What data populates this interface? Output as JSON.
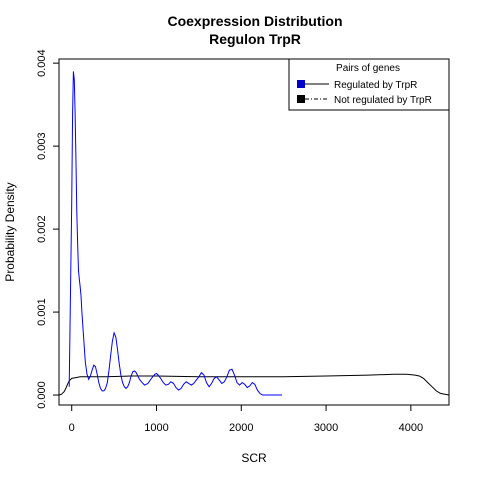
{
  "chart_data": {
    "type": "line",
    "title": "Coexpression Distribution",
    "subtitle": "Regulon TrpR",
    "xlabel": "SCR",
    "ylabel": "Probability Density",
    "xlim": [
      -150,
      4450
    ],
    "ylim": [
      -0.00012,
      0.00405
    ],
    "x_ticks": [
      0,
      1000,
      2000,
      3000,
      4000
    ],
    "x_tick_labels": [
      "0",
      "1000",
      "2000",
      "3000",
      "4000"
    ],
    "y_ticks": [
      0.0,
      0.001,
      0.002,
      0.003,
      0.004
    ],
    "y_tick_labels": [
      "0.000",
      "0.001",
      "0.002",
      "0.003",
      "0.004"
    ],
    "legend": {
      "title": "Pairs of genes",
      "position": "top-right",
      "entries": [
        "Regulated by  TrpR",
        "Not regulated by  TrpR"
      ]
    },
    "series": [
      {
        "name": "Regulated by  TrpR",
        "color": "#0000ff",
        "line_style": "solid",
        "marker_color": "#0000cc",
        "x": [
          -30,
          0,
          10,
          20,
          30,
          40,
          50,
          60,
          70,
          80,
          90,
          100,
          110,
          120,
          140,
          160,
          180,
          200,
          220,
          240,
          260,
          280,
          300,
          320,
          340,
          360,
          380,
          400,
          420,
          440,
          460,
          480,
          500,
          520,
          540,
          560,
          580,
          600,
          620,
          640,
          660,
          680,
          700,
          720,
          740,
          760,
          780,
          800,
          830,
          860,
          900,
          940,
          980,
          1000,
          1020,
          1050,
          1080,
          1110,
          1140,
          1170,
          1200,
          1230,
          1260,
          1290,
          1320,
          1350,
          1380,
          1410,
          1440,
          1470,
          1500,
          1530,
          1560,
          1590,
          1620,
          1650,
          1680,
          1710,
          1740,
          1770,
          1800,
          1830,
          1860,
          1890,
          1920,
          1950,
          1980,
          2010,
          2040,
          2070,
          2100,
          2130,
          2160,
          2190,
          2220,
          2250,
          2280,
          2310,
          2340,
          2370,
          2400,
          2430,
          2460,
          2480
        ],
        "y": [
          0.0001,
          0.0023,
          0.0034,
          0.0039,
          0.0038,
          0.0034,
          0.0028,
          0.0022,
          0.0018,
          0.0015,
          0.0014,
          0.0013,
          0.0012,
          0.001,
          0.0007,
          0.0004,
          0.00025,
          0.00019,
          0.00023,
          0.0003,
          0.00036,
          0.00034,
          0.00025,
          0.00015,
          8e-05,
          5e-05,
          5e-05,
          8e-05,
          0.00015,
          0.0003,
          0.00048,
          0.00065,
          0.00075,
          0.0007,
          0.00055,
          0.00038,
          0.00024,
          0.00015,
          0.0001,
          8e-05,
          0.0001,
          0.00015,
          0.00023,
          0.00028,
          0.00029,
          0.00027,
          0.00023,
          0.00019,
          0.00015,
          0.00012,
          0.00014,
          0.0002,
          0.00025,
          0.00026,
          0.00024,
          0.0002,
          0.00015,
          0.00012,
          0.00013,
          0.00016,
          0.00014,
          9e-05,
          6e-05,
          8e-05,
          0.00013,
          0.00016,
          0.00014,
          0.00012,
          0.00014,
          0.00018,
          0.00022,
          0.00027,
          0.00024,
          0.00015,
          0.0001,
          0.00014,
          0.0002,
          0.00022,
          0.00018,
          0.00014,
          0.00016,
          0.00022,
          0.0003,
          0.00031,
          0.00024,
          0.00015,
          0.00012,
          0.00015,
          0.00013,
          9e-05,
          0.00011,
          0.00015,
          0.00013,
          6e-05,
          2e-05,
          0.0,
          0.0,
          0.0,
          0.0,
          0.0,
          0.0,
          0.0,
          0.0,
          0.0
        ]
      },
      {
        "name": "Not regulated by  TrpR",
        "color": "#000000",
        "line_style": "solid",
        "marker_color": "#000000",
        "x": [
          -150,
          -120,
          -90,
          -70,
          -50,
          -30,
          0,
          50,
          100,
          200,
          400,
          700,
          1000,
          1500,
          2000,
          2500,
          3000,
          3500,
          3800,
          3950,
          4050,
          4100,
          4150,
          4200,
          4250,
          4300,
          4350,
          4400,
          4450
        ],
        "y": [
          0.0,
          1e-05,
          4e-05,
          8e-05,
          0.00013,
          0.00017,
          0.0002,
          0.00021,
          0.00022,
          0.00022,
          0.00022,
          0.00023,
          0.00023,
          0.00022,
          0.00022,
          0.00022,
          0.00023,
          0.00024,
          0.00025,
          0.00025,
          0.00024,
          0.00023,
          0.0002,
          0.00015,
          0.0001,
          5e-05,
          2e-05,
          1e-05,
          0.0
        ]
      }
    ]
  }
}
